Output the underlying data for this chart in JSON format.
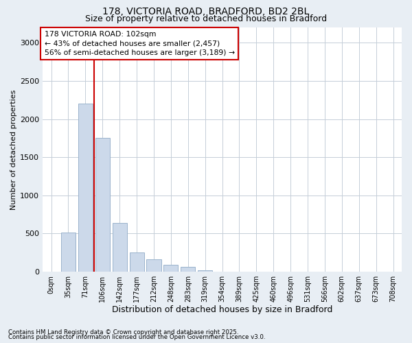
{
  "title_line1": "178, VICTORIA ROAD, BRADFORD, BD2 2BL",
  "title_line2": "Size of property relative to detached houses in Bradford",
  "xlabel": "Distribution of detached houses by size in Bradford",
  "ylabel": "Number of detached properties",
  "bar_labels": [
    "0sqm",
    "35sqm",
    "71sqm",
    "106sqm",
    "142sqm",
    "177sqm",
    "212sqm",
    "248sqm",
    "283sqm",
    "319sqm",
    "354sqm",
    "389sqm",
    "425sqm",
    "460sqm",
    "496sqm",
    "531sqm",
    "566sqm",
    "602sqm",
    "637sqm",
    "673sqm",
    "708sqm"
  ],
  "bar_values": [
    0,
    510,
    2200,
    1750,
    640,
    250,
    160,
    95,
    65,
    20,
    0,
    0,
    0,
    0,
    0,
    0,
    0,
    0,
    0,
    0,
    0
  ],
  "bar_color": "#ccd9ea",
  "bar_edgecolor": "#9ab3cc",
  "vline_color": "#cc0000",
  "annotation_title": "178 VICTORIA ROAD: 102sqm",
  "annotation_line2": "← 43% of detached houses are smaller (2,457)",
  "annotation_line3": "56% of semi-detached houses are larger (3,189) →",
  "annotation_box_color": "#cc0000",
  "ylim": [
    0,
    3200
  ],
  "yticks": [
    0,
    500,
    1000,
    1500,
    2000,
    2500,
    3000
  ],
  "footnote1": "Contains HM Land Registry data © Crown copyright and database right 2025.",
  "footnote2": "Contains public sector information licensed under the Open Government Licence v3.0.",
  "bg_color": "#e8eef4",
  "plot_bg_color": "#ffffff",
  "grid_color": "#c5ced8"
}
